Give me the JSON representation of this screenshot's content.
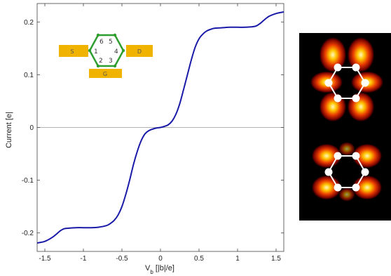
{
  "chart_data": {
    "type": "line",
    "xlabel_main": "V",
    "xlabel_sub": "b",
    "xlabel_unit": " [|b|/e]",
    "ylabel": "Current [e|",
    "xlim": [
      -1.6,
      1.6
    ],
    "ylim": [
      -0.235,
      0.235
    ],
    "xticks": [
      "-1.5",
      "-1",
      "-0.5",
      "0",
      "0.5",
      "1",
      "1.5"
    ],
    "xtick_values": [
      -1.5,
      -1,
      -0.5,
      0,
      0.5,
      1,
      1.5
    ],
    "yticks": [
      "-0.2",
      "-0.1",
      "0",
      "0.1",
      "0.2"
    ],
    "ytick_values": [
      -0.2,
      -0.1,
      0,
      0.1,
      0.2
    ],
    "zero_line": true,
    "series": [
      {
        "color": "#1a1aa8",
        "x": [
          -1.6,
          -1.5,
          -1.4,
          -1.3,
          -1.25,
          -1.2,
          -1.1,
          -1.0,
          -0.9,
          -0.8,
          -0.7,
          -0.65,
          -0.6,
          -0.55,
          -0.5,
          -0.45,
          -0.4,
          -0.35,
          -0.3,
          -0.25,
          -0.2,
          -0.15,
          -0.1,
          -0.05,
          0.0,
          0.05,
          0.1,
          0.15,
          0.2,
          0.25,
          0.3,
          0.35,
          0.4,
          0.45,
          0.5,
          0.55,
          0.6,
          0.65,
          0.7,
          0.8,
          0.9,
          1.0,
          1.1,
          1.2,
          1.25,
          1.3,
          1.4,
          1.5,
          1.6
        ],
        "y": [
          -0.219,
          -0.216,
          -0.208,
          -0.196,
          -0.192,
          -0.191,
          -0.19,
          -0.19,
          -0.19,
          -0.189,
          -0.186,
          -0.182,
          -0.176,
          -0.166,
          -0.15,
          -0.127,
          -0.1,
          -0.07,
          -0.045,
          -0.025,
          -0.012,
          -0.006,
          -0.003,
          -0.001,
          0.0,
          0.002,
          0.005,
          0.012,
          0.025,
          0.045,
          0.072,
          0.1,
          0.128,
          0.152,
          0.168,
          0.177,
          0.183,
          0.186,
          0.188,
          0.189,
          0.19,
          0.19,
          0.19,
          0.191,
          0.193,
          0.198,
          0.21,
          0.216,
          0.219
        ]
      }
    ]
  },
  "inset": {
    "electrode_left": "S",
    "electrode_right": "D",
    "electrode_gate": "G",
    "sites": [
      "1",
      "2",
      "3",
      "4",
      "5",
      "6"
    ]
  },
  "colors": {
    "electrode": "#f0b400",
    "ring": "#2e9e2e",
    "curve": "#1a1aa8",
    "map_bg": "#000000"
  }
}
